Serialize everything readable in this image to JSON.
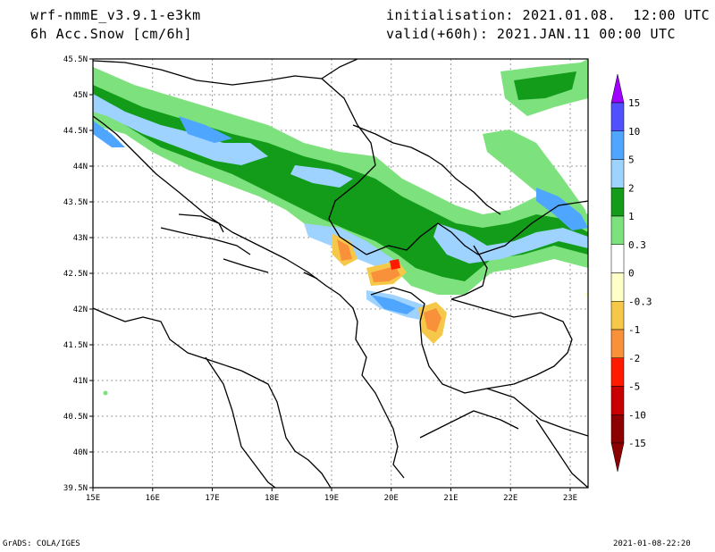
{
  "header": {
    "model": "wrf-nmmE_v3.9.1-e3km",
    "field": "6h Acc.Snow [cm/6h]",
    "init": "initialisation: 2021.01.08.  12:00 UTC",
    "valid": "valid(+60h): 2021.JAN.11 00:00 UTC"
  },
  "footer": {
    "left": "GrADS: COLA/IGES",
    "right": "2021-01-08-22:20"
  },
  "map": {
    "lon_labels": [
      "15E",
      "16E",
      "17E",
      "18E",
      "19E",
      "20E",
      "21E",
      "22E",
      "23E"
    ],
    "lat_labels": [
      "45.5N",
      "45N",
      "44.5N",
      "44N",
      "43.5N",
      "43N",
      "42.5N",
      "42N",
      "41.5N",
      "41N",
      "40.5N",
      "40N",
      "39.5N"
    ]
  },
  "colorbar": {
    "labels": [
      "15",
      "10",
      "5",
      "2",
      "1",
      "0.3",
      "0",
      "-0.3",
      "-1",
      "-2",
      "-5",
      "-10",
      "-15"
    ],
    "colors": [
      "#a000ff",
      "#5050ff",
      "#4ea6ff",
      "#9ed2ff",
      "#139c19",
      "#7de17d",
      "#ffffff",
      "#ffffc8",
      "#f6c84a",
      "#f9903a",
      "#ff1a00",
      "#c80000",
      "#8c0000"
    ]
  }
}
